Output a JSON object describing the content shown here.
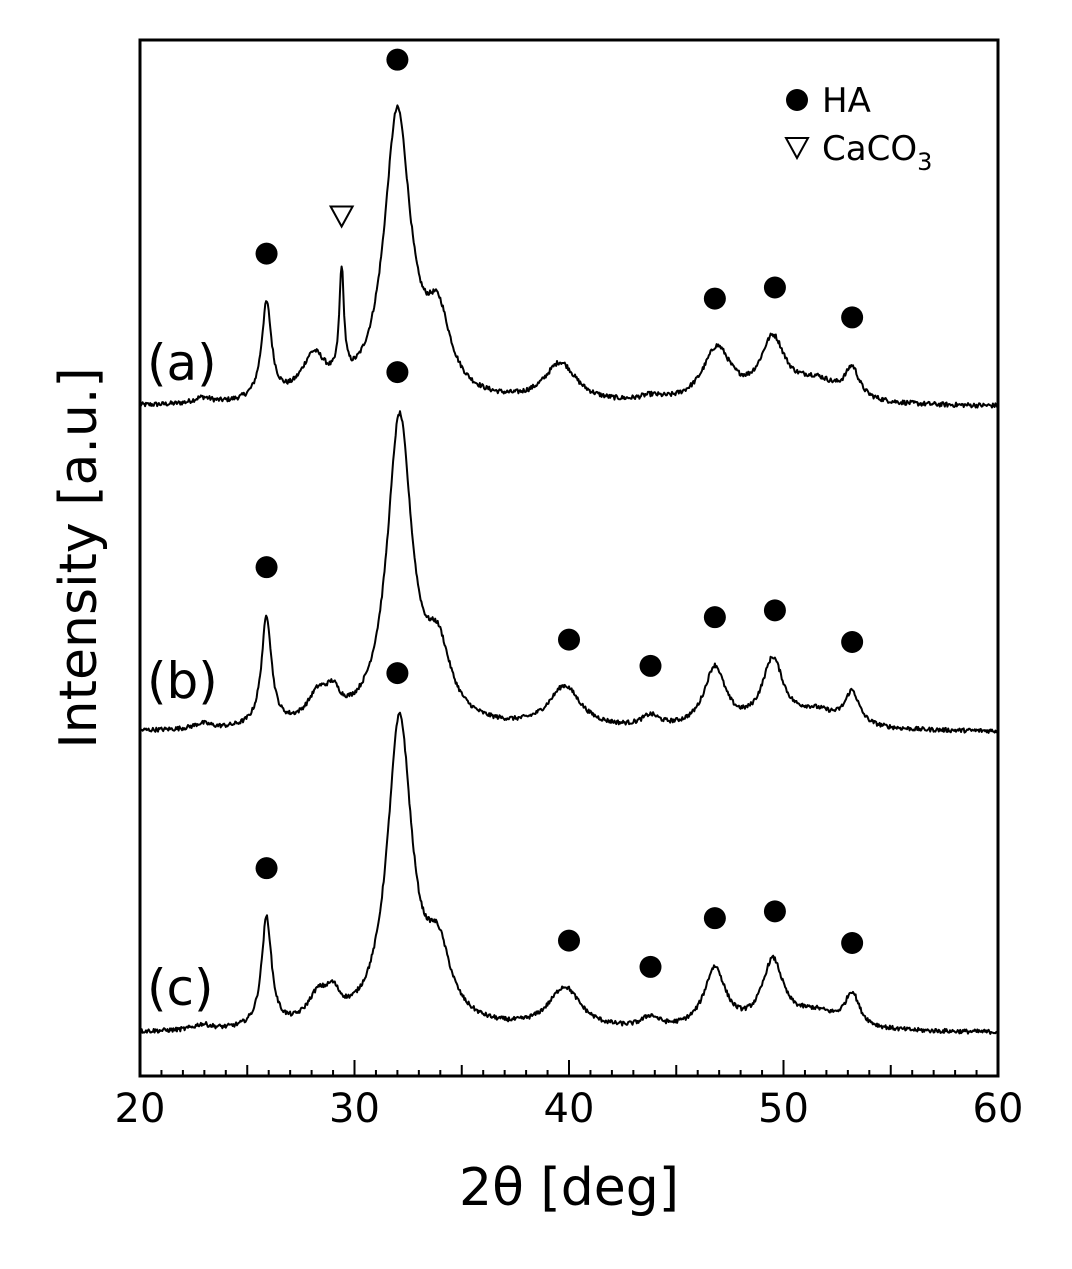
{
  "chart_data": {
    "type": "line",
    "title": "",
    "xlabel": "2θ [deg]",
    "ylabel": "Intensity [a.u.]",
    "xlim": [
      20,
      60
    ],
    "ylim": [
      0,
      1
    ],
    "x_ticks": [
      20,
      30,
      40,
      50,
      60
    ],
    "x_tick_labels": [
      "20",
      "30",
      "40",
      "50",
      "60"
    ],
    "grid": false,
    "legend": {
      "position": "top-right",
      "entries": [
        {
          "marker": "circle-filled",
          "label": "HA",
          "label_main": "HA",
          "label_sub": ""
        },
        {
          "marker": "triangle-down-open",
          "label": "CaCO3",
          "label_main": "CaCO",
          "label_sub": "3"
        }
      ]
    },
    "series": [
      {
        "name": "(a)",
        "baseline": 0.1,
        "peaks": [
          {
            "x": 22.9,
            "h": 0.005,
            "w": 0.5
          },
          {
            "x": 25.9,
            "h": 0.08,
            "w": 0.28
          },
          {
            "x": 28.1,
            "h": 0.035,
            "w": 0.7
          },
          {
            "x": 29.4,
            "h": 0.09,
            "w": 0.13
          },
          {
            "x": 32.0,
            "h": 0.24,
            "w": 0.75
          },
          {
            "x": 33.9,
            "h": 0.06,
            "w": 0.7
          },
          {
            "x": 39.6,
            "h": 0.033,
            "w": 0.9
          },
          {
            "x": 43.8,
            "h": 0.004,
            "w": 0.6
          },
          {
            "x": 46.9,
            "h": 0.045,
            "w": 0.8
          },
          {
            "x": 49.5,
            "h": 0.05,
            "w": 0.7
          },
          {
            "x": 51.5,
            "h": 0.018,
            "w": 1.3
          },
          {
            "x": 53.2,
            "h": 0.025,
            "w": 0.4
          }
        ],
        "markers": [
          {
            "x": 25.9,
            "type": "HA"
          },
          {
            "x": 29.4,
            "type": "CaCO3"
          },
          {
            "x": 32.0,
            "type": "HA"
          },
          {
            "x": 46.8,
            "type": "HA"
          },
          {
            "x": 49.6,
            "type": "HA"
          },
          {
            "x": 53.2,
            "type": "HA"
          }
        ]
      },
      {
        "name": "(b)",
        "baseline": 0.1,
        "peaks": [
          {
            "x": 22.9,
            "h": 0.005,
            "w": 0.5
          },
          {
            "x": 25.9,
            "h": 0.1,
            "w": 0.28
          },
          {
            "x": 28.3,
            "h": 0.025,
            "w": 0.6
          },
          {
            "x": 29.0,
            "h": 0.02,
            "w": 0.4
          },
          {
            "x": 32.1,
            "h": 0.28,
            "w": 0.7
          },
          {
            "x": 33.9,
            "h": 0.06,
            "w": 0.7
          },
          {
            "x": 39.8,
            "h": 0.038,
            "w": 0.9
          },
          {
            "x": 43.8,
            "h": 0.01,
            "w": 0.5
          },
          {
            "x": 46.8,
            "h": 0.055,
            "w": 0.6
          },
          {
            "x": 49.5,
            "h": 0.06,
            "w": 0.6
          },
          {
            "x": 51.5,
            "h": 0.015,
            "w": 1.3
          },
          {
            "x": 53.2,
            "h": 0.03,
            "w": 0.4
          }
        ],
        "markers": [
          {
            "x": 25.9,
            "type": "HA"
          },
          {
            "x": 32.0,
            "type": "HA"
          },
          {
            "x": 40.0,
            "type": "HA"
          },
          {
            "x": 43.8,
            "type": "HA"
          },
          {
            "x": 46.8,
            "type": "HA"
          },
          {
            "x": 49.6,
            "type": "HA"
          },
          {
            "x": 53.2,
            "type": "HA"
          }
        ]
      },
      {
        "name": "(c)",
        "baseline": 0.1,
        "peaks": [
          {
            "x": 22.9,
            "h": 0.005,
            "w": 0.5
          },
          {
            "x": 25.9,
            "h": 0.1,
            "w": 0.28
          },
          {
            "x": 28.3,
            "h": 0.025,
            "w": 0.6
          },
          {
            "x": 29.0,
            "h": 0.02,
            "w": 0.4
          },
          {
            "x": 32.1,
            "h": 0.28,
            "w": 0.7
          },
          {
            "x": 33.9,
            "h": 0.06,
            "w": 0.7
          },
          {
            "x": 39.8,
            "h": 0.038,
            "w": 0.9
          },
          {
            "x": 43.8,
            "h": 0.01,
            "w": 0.5
          },
          {
            "x": 46.8,
            "h": 0.055,
            "w": 0.6
          },
          {
            "x": 49.5,
            "h": 0.06,
            "w": 0.6
          },
          {
            "x": 51.5,
            "h": 0.015,
            "w": 1.3
          },
          {
            "x": 53.2,
            "h": 0.03,
            "w": 0.4
          }
        ],
        "markers": [
          {
            "x": 25.9,
            "type": "HA"
          },
          {
            "x": 32.0,
            "type": "HA"
          },
          {
            "x": 40.0,
            "type": "HA"
          },
          {
            "x": 43.8,
            "type": "HA"
          },
          {
            "x": 46.8,
            "type": "HA"
          },
          {
            "x": 49.6,
            "type": "HA"
          },
          {
            "x": 53.2,
            "type": "HA"
          }
        ]
      }
    ]
  }
}
